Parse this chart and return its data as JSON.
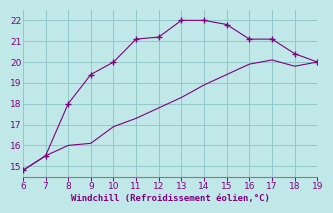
{
  "line1_x": [
    6,
    7,
    8,
    9,
    10,
    11,
    12,
    13,
    14,
    15,
    16,
    17,
    18,
    19
  ],
  "line1_y": [
    14.8,
    15.5,
    18.0,
    19.4,
    20.0,
    21.1,
    21.2,
    22.0,
    22.0,
    21.8,
    21.1,
    21.1,
    20.4,
    20.0
  ],
  "line2_x": [
    6,
    7,
    8,
    9,
    10,
    11,
    12,
    13,
    14,
    15,
    16,
    17,
    18,
    19
  ],
  "line2_y": [
    14.8,
    15.5,
    16.0,
    16.1,
    16.9,
    17.3,
    17.8,
    18.3,
    18.9,
    19.4,
    19.9,
    20.1,
    19.8,
    20.0
  ],
  "line_color": "#800080",
  "bg_color": "#c0e8e8",
  "grid_color": "#90c8c8",
  "xlabel": "Windchill (Refroidissement éolien,°C)",
  "xlabel_color": "#800080",
  "tick_color": "#800080",
  "spine_color": "#808080",
  "xlim": [
    6,
    19
  ],
  "ylim": [
    14.5,
    22.5
  ],
  "xticks": [
    6,
    7,
    8,
    9,
    10,
    11,
    12,
    13,
    14,
    15,
    16,
    17,
    18,
    19
  ],
  "yticks": [
    15,
    16,
    17,
    18,
    19,
    20,
    21,
    22
  ]
}
